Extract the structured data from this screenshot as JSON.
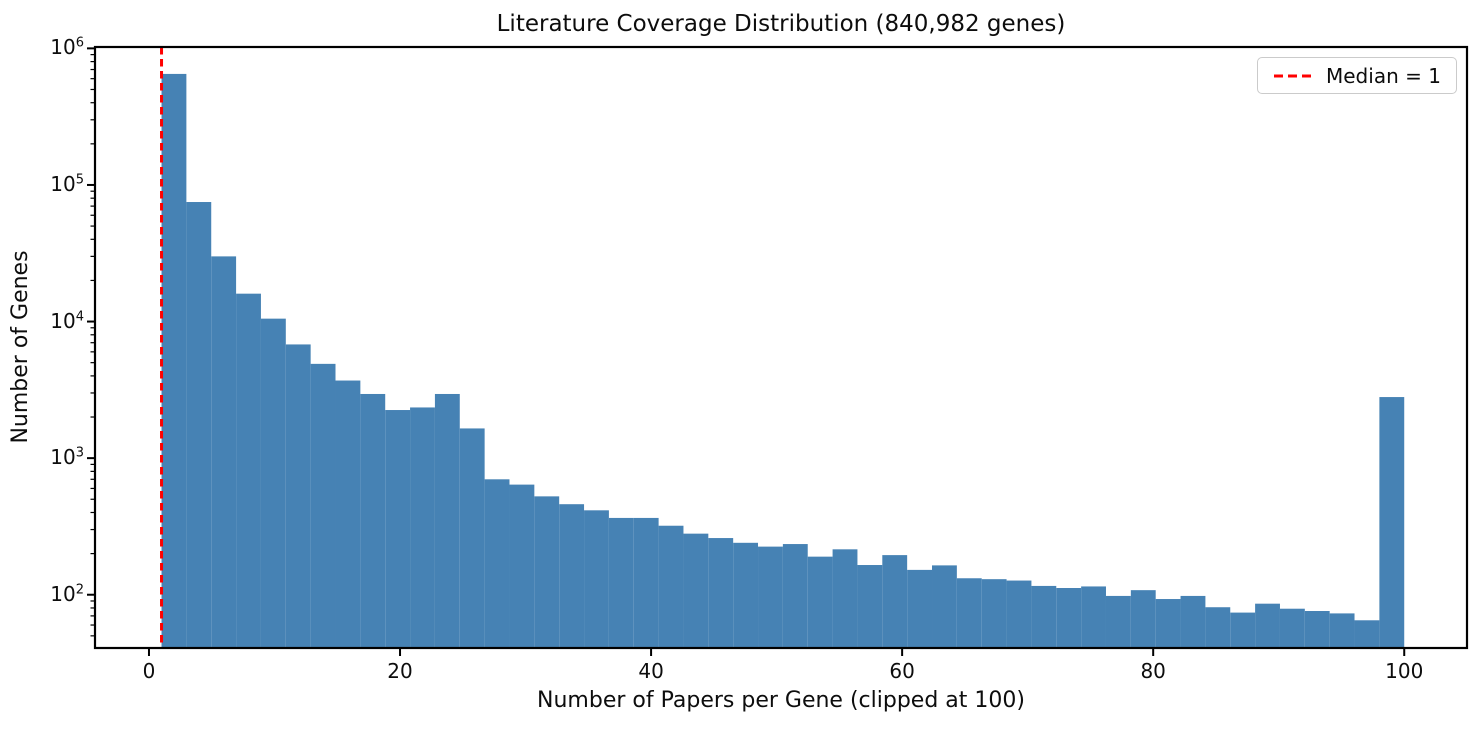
{
  "chart_data": {
    "type": "bar",
    "subtype": "histogram",
    "title": "Literature Coverage Distribution (840,982 genes)",
    "xlabel": "Number of Papers per Gene (clipped at 100)",
    "ylabel": "Number of Genes",
    "total_genes_in_title": "840,982",
    "yscale": "log",
    "grid": false,
    "bins": {
      "start": 1,
      "end": 100,
      "count": 50,
      "width": 1.98
    },
    "values": [
      650000,
      75000,
      30000,
      16000,
      10500,
      6800,
      4900,
      3700,
      2950,
      2250,
      2350,
      2950,
      1650,
      700,
      640,
      525,
      460,
      415,
      365,
      365,
      320,
      280,
      260,
      240,
      225,
      235,
      190,
      215,
      165,
      195,
      152,
      164,
      132,
      130,
      127,
      116,
      112,
      115,
      98,
      108,
      93,
      98,
      81,
      74,
      86,
      79,
      76,
      73,
      65,
      2800
    ],
    "median_line": {
      "x": 1,
      "label": "Median = 1",
      "color": "#ff0000",
      "linestyle": "dashed"
    },
    "legend": {
      "position": "upper right",
      "entries": [
        "Median = 1"
      ]
    },
    "xticks": [
      0,
      20,
      40,
      60,
      80,
      100
    ],
    "ytick_exponents": [
      6,
      5,
      4,
      3,
      2
    ],
    "ytick_base": "10",
    "xlim": [
      -4.3,
      105.0
    ],
    "ylim_log10": [
      1.61,
      6.01
    ],
    "colors": {
      "bar": "#4682b4",
      "median_line": "#ff0000",
      "spine": "#000000",
      "text": "#0d0d0d"
    }
  }
}
